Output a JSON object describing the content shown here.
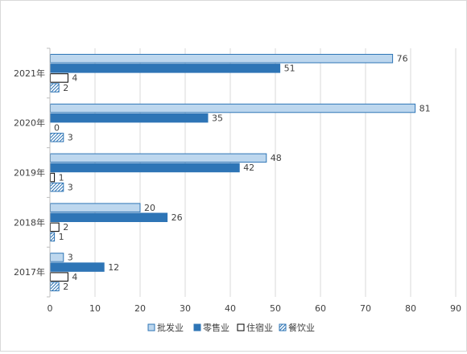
{
  "chart_data": {
    "type": "bar",
    "orientation": "horizontal",
    "categories": [
      "2021年",
      "2020年",
      "2019年",
      "2018年",
      "2017年"
    ],
    "series": [
      {
        "name": "批发业",
        "values": [
          76,
          81,
          48,
          20,
          3
        ],
        "color": "#BDD7EE",
        "stroke": "#2E75B6",
        "style": "solid"
      },
      {
        "name": "零售业",
        "values": [
          51,
          35,
          42,
          26,
          12
        ],
        "color": "#2E75B6",
        "stroke": "#2E75B6",
        "style": "solid"
      },
      {
        "name": "住宿业",
        "values": [
          4,
          0,
          1,
          2,
          4
        ],
        "color": "#FFFFFF",
        "stroke": "#000000",
        "style": "outline"
      },
      {
        "name": "餐饮业",
        "values": [
          2,
          3,
          3,
          1,
          2
        ],
        "color": "#FFFFFF",
        "stroke": "#2E75B6",
        "style": "hatch"
      }
    ],
    "xlim": [
      0,
      90
    ],
    "xticks": [
      0,
      10,
      20,
      30,
      40,
      50,
      60,
      70,
      80,
      90
    ],
    "grid": "vertical",
    "data_labels": true,
    "legend_position": "bottom",
    "gridline_color": "#D9D9D9",
    "axis_color": "#BFBFBF",
    "label_color": "#404040"
  }
}
